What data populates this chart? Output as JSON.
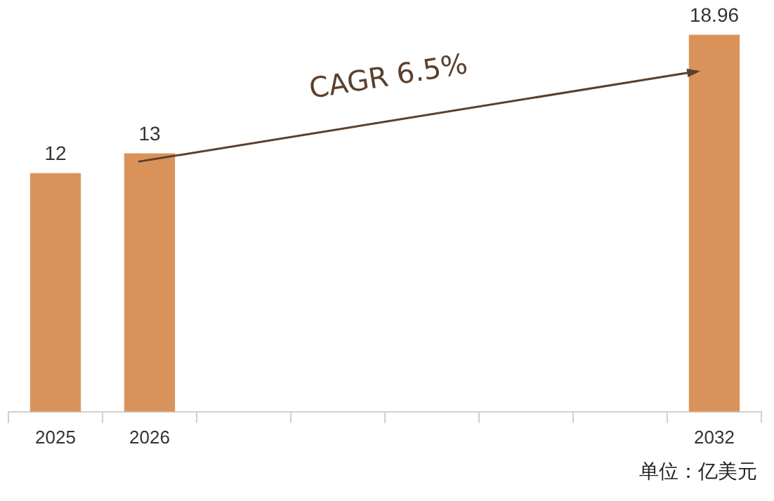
{
  "chart_data": {
    "type": "bar",
    "categories": [
      "2025",
      "2026",
      null,
      null,
      null,
      null,
      null,
      "2032"
    ],
    "values": [
      12,
      13,
      null,
      null,
      null,
      null,
      null,
      18.96
    ],
    "color": "#d9935a",
    "data_labels": true,
    "annotations": [
      "CAGR 6.5%",
      "单位：亿美元"
    ]
  }
}
